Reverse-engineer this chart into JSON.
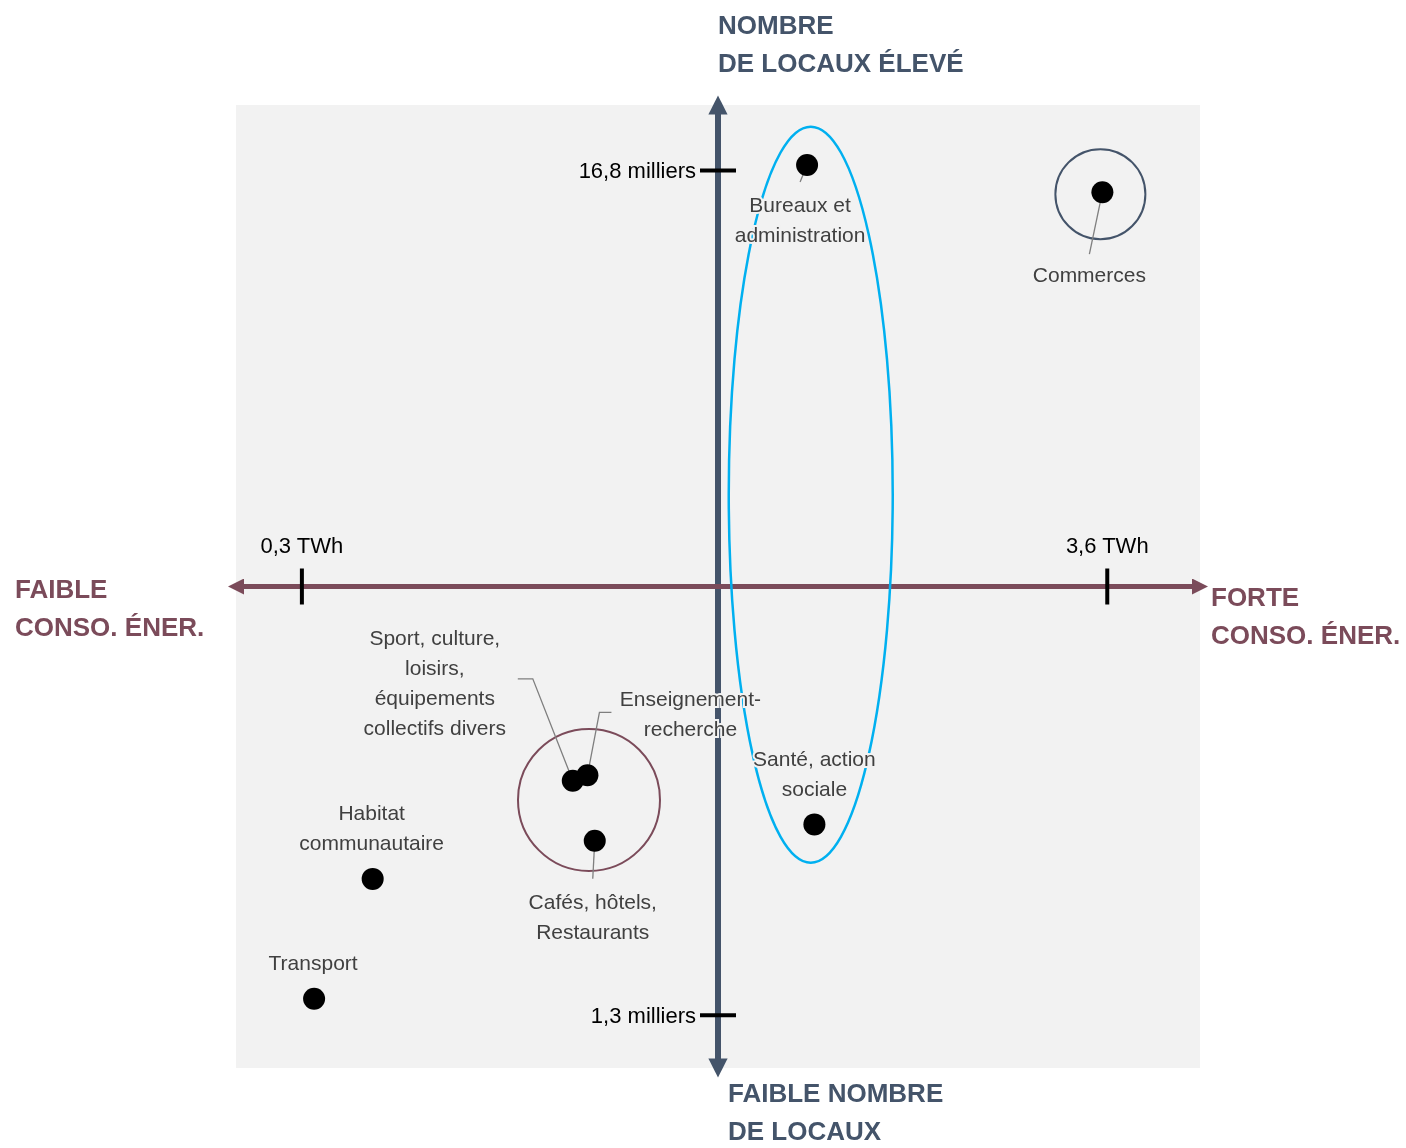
{
  "chart_data": {
    "type": "scatter",
    "x": [
      2.37,
      3.58,
      1.41,
      1.47,
      1.5,
      2.4,
      0.59,
      0.35
    ],
    "values": [
      16.9,
      16.4,
      5.6,
      5.7,
      4.5,
      4.8,
      3.8,
      1.6
    ],
    "color": "#000000",
    "marker": "circle",
    "grid": false,
    "xlim": [
      0.03,
      3.98
    ],
    "ylim": [
      0.33,
      18.0
    ],
    "xticks": [
      {
        "value": 0.3,
        "label": "0,3 TWh"
      },
      {
        "value": 3.6,
        "label": "3,6 TWh"
      }
    ],
    "yticks": [
      {
        "value": 1.3,
        "label": "1,3 milliers"
      },
      {
        "value": 16.8,
        "label": "16,8 milliers"
      }
    ],
    "annotations": [
      {
        "text": "Bureaux et\nadministration",
        "x": 2.37,
        "y": 16.9
      },
      {
        "text": "Commerces",
        "x": 3.58,
        "y": 16.4
      },
      {
        "text": "Sport, culture,\nloisirs,\néquipements\ncollectifs divers",
        "x": 1.41,
        "y": 5.6
      },
      {
        "text": "Enseignement-\nrecherche",
        "x": 1.47,
        "y": 5.7
      },
      {
        "text": "Cafés, hôtels,\nRestaurants",
        "x": 1.5,
        "y": 4.5
      },
      {
        "text": "Santé, action\nsociale",
        "x": 2.4,
        "y": 4.8
      },
      {
        "text": "Habitat\ncommunautaire",
        "x": 0.59,
        "y": 3.8
      },
      {
        "text": "Transport",
        "x": 0.35,
        "y": 1.6
      },
      "NOMBRE\nDE LOCAUX ÉLEVÉ",
      "FAIBLE NOMBRE\nDE LOCAUX",
      "FAIBLE\nCONSO. ÉNER.",
      "FORTE\nCONSO. ÉNER."
    ]
  }
}
